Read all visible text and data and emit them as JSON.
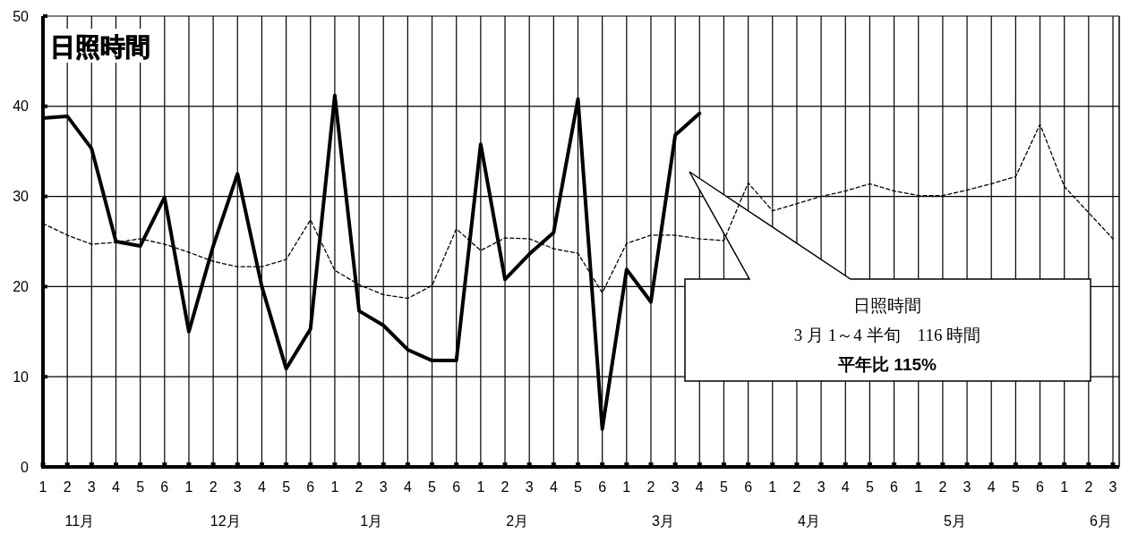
{
  "chart_data": {
    "type": "line",
    "title": "日照時間",
    "categories": [
      "1",
      "2",
      "3",
      "4",
      "5",
      "6",
      "1",
      "2",
      "3",
      "4",
      "5",
      "6",
      "1",
      "2",
      "3",
      "4",
      "5",
      "6",
      "1",
      "2",
      "3",
      "4",
      "5",
      "6",
      "1",
      "2",
      "3",
      "4",
      "5",
      "6",
      "1",
      "2",
      "3",
      "4",
      "5",
      "6",
      "1",
      "2",
      "3",
      "4",
      "5",
      "6",
      "1",
      "2",
      "3"
    ],
    "series": [
      {
        "color": "#000000",
        "line_style": "solid",
        "values": [
          38.7,
          38.9,
          35.3,
          25.0,
          24.5,
          29.9,
          15.0,
          24.5,
          32.5,
          20.0,
          10.9,
          15.3,
          41.2,
          17.3,
          15.7,
          13.0,
          11.8,
          11.8,
          35.8,
          20.8,
          23.6,
          26.0,
          40.8,
          4.2,
          21.9,
          18.3,
          36.8,
          39.2,
          null,
          null,
          null,
          null,
          null,
          null,
          null,
          null,
          null,
          null,
          null,
          null,
          null,
          null,
          null,
          null,
          null
        ]
      },
      {
        "color": "#000000",
        "line_style": "dashed",
        "values": [
          27.0,
          25.7,
          24.7,
          24.9,
          25.3,
          24.7,
          23.8,
          22.8,
          22.2,
          22.2,
          23.0,
          27.4,
          21.8,
          20.2,
          19.1,
          18.7,
          20.1,
          26.4,
          24.0,
          25.4,
          25.3,
          24.2,
          23.7,
          19.3,
          24.8,
          25.7,
          25.7,
          25.3,
          25.1,
          31.5,
          28.4,
          29.2,
          30.0,
          30.6,
          31.4,
          30.6,
          30.1,
          30.1,
          30.7,
          31.4,
          32.2,
          38.0,
          31.1,
          28.2,
          25.3
        ]
      }
    ],
    "ylim": [
      0,
      50
    ],
    "yticks": [
      0,
      10,
      20,
      30,
      40,
      50
    ],
    "grid": true,
    "marker": "none",
    "annotations": [
      "日照時間",
      "3 月 1～4 半旬　116 時間",
      "平年比 115%",
      "11月",
      "12月",
      "1月",
      "2月",
      "3月",
      "4月",
      "5月",
      "6月"
    ]
  }
}
